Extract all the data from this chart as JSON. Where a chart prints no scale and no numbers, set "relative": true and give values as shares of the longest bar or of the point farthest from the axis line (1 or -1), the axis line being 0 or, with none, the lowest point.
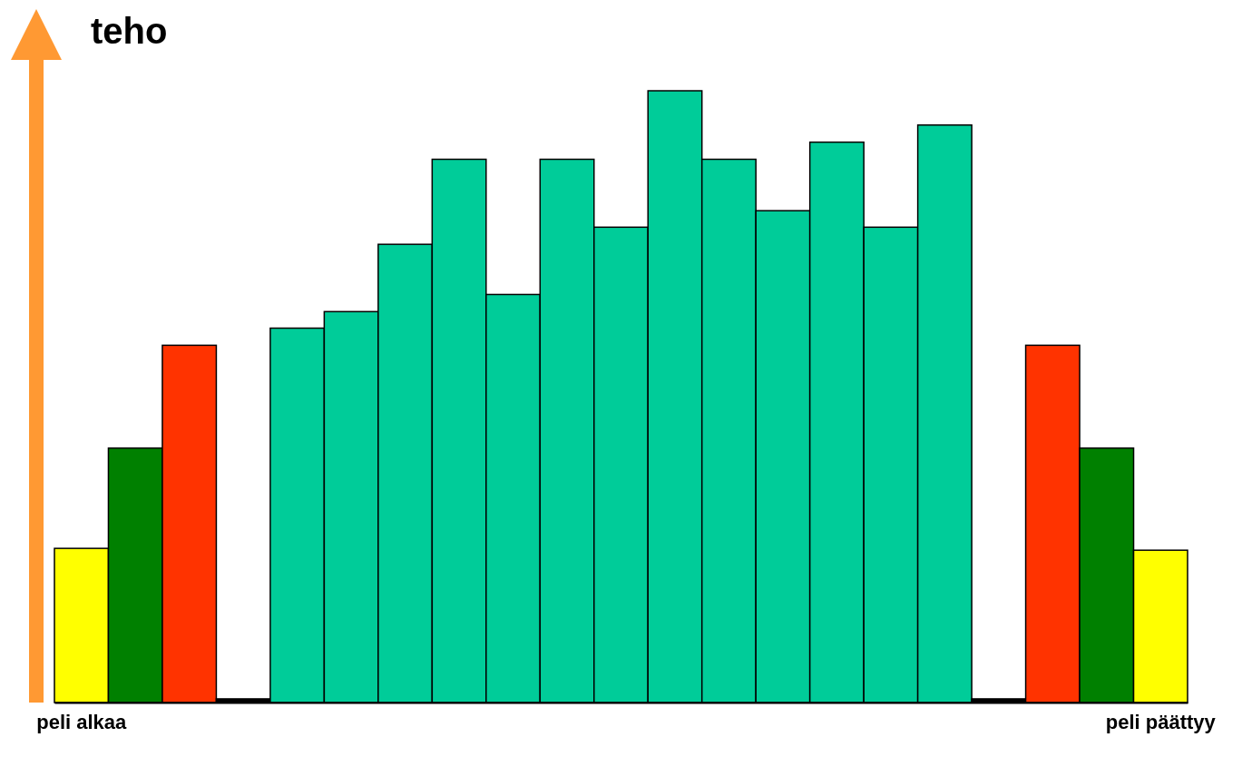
{
  "chart_data": {
    "type": "bar",
    "ylabel": "teho",
    "relative": true,
    "categories": [
      "peli alkaa",
      null,
      null,
      null,
      null,
      null,
      null,
      null,
      null,
      null,
      null,
      null,
      null,
      null,
      null,
      null,
      null,
      null,
      null,
      null,
      "peli päättyy"
    ],
    "values": [
      0.252,
      0.416,
      0.584,
      0.006,
      0.612,
      0.639,
      0.749,
      0.888,
      0.667,
      0.888,
      0.777,
      1,
      0.888,
      0.804,
      0.916,
      0.777,
      0.944,
      0.006,
      0.584,
      0.416,
      0.249
    ],
    "colors": [
      "#ffff00",
      "#008000",
      "#ff3300",
      "#000000",
      "#00cc99",
      "#00cc99",
      "#00cc99",
      "#00cc99",
      "#00cc99",
      "#00cc99",
      "#00cc99",
      "#00cc99",
      "#00cc99",
      "#00cc99",
      "#00cc99",
      "#00cc99",
      "#00cc99",
      "#000000",
      "#ff3300",
      "#008000",
      "#ffff00"
    ]
  }
}
